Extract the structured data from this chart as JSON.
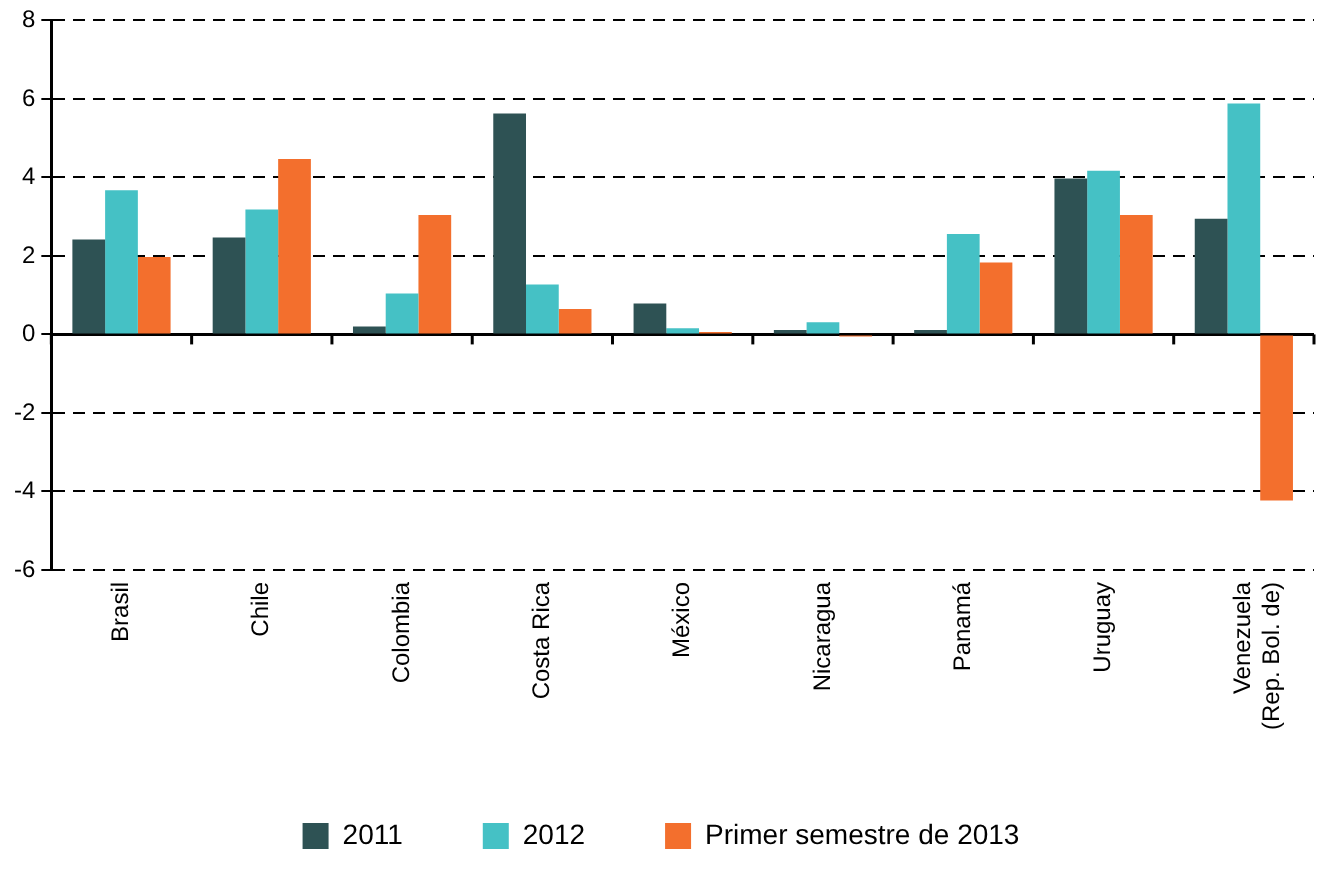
{
  "chart_data": {
    "type": "bar",
    "categories": [
      "Brasil",
      "Chile",
      "Colombia",
      "Costa Rica",
      "México",
      "Nicaragua",
      "Panamá",
      "Uruguay",
      "Venezuela\n(Rep. Bol. de)"
    ],
    "series": [
      {
        "name": "2011",
        "color": "#2e5254",
        "values": [
          2.42,
          2.47,
          0.2,
          5.63,
          0.79,
          0.11,
          0.11,
          3.97,
          2.95
        ]
      },
      {
        "name": "2012",
        "color": "#45c1c5",
        "values": [
          3.67,
          3.18,
          1.04,
          1.27,
          0.16,
          0.31,
          2.56,
          4.17,
          5.88
        ]
      },
      {
        "name": "Primer semestre de 2013",
        "color": "#f36f2d",
        "values": [
          1.97,
          4.47,
          3.04,
          0.65,
          0.06,
          -0.05,
          1.83,
          3.04,
          -4.23
        ]
      }
    ],
    "ylim": [
      -6,
      8
    ],
    "yticks": [
      -6,
      -4,
      -2,
      0,
      2,
      4,
      6,
      8
    ],
    "grid": "y",
    "legend": "bottom"
  }
}
